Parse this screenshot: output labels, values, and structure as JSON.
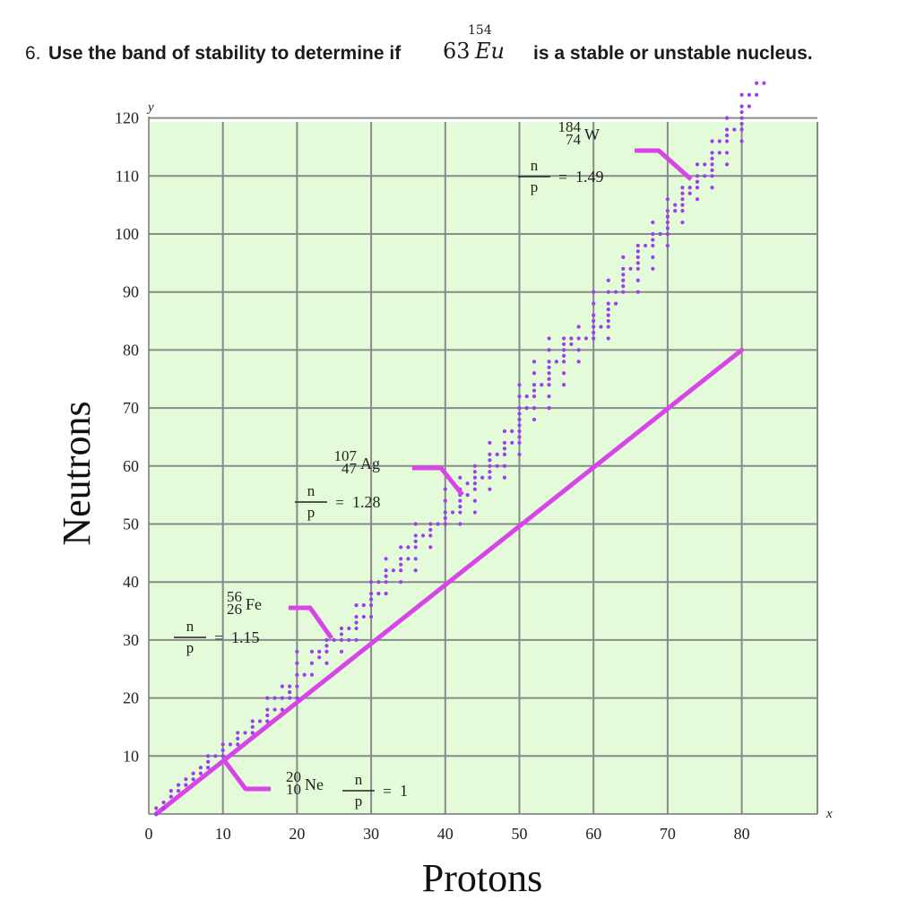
{
  "question": {
    "prefix": "6.",
    "text_a": "Use the band of stability to determine if",
    "text_b": "is a stable or unstable nucleus.",
    "nucleus": {
      "mass": "154",
      "z": "63",
      "symbol": "Eu"
    }
  },
  "chart_data": {
    "type": "scatter",
    "title": "",
    "xlabel": "Protons",
    "ylabel": "Neutrons",
    "x_axis_letter": "x",
    "y_axis_letter": "y",
    "xlim": [
      0,
      90
    ],
    "ylim": [
      0,
      120
    ],
    "xticks": [
      0,
      10,
      20,
      30,
      40,
      50,
      60,
      70,
      80
    ],
    "yticks": [
      10,
      20,
      30,
      40,
      50,
      60,
      70,
      80,
      90,
      100,
      110,
      120
    ],
    "grid": true,
    "background_color": "#e3fbd9",
    "grid_color": "#8a8a8a",
    "point_color": "#9b3df0",
    "line_color": "#d944e8",
    "reference_line": {
      "label": "n/p = 1",
      "from": [
        1,
        0
      ],
      "to": [
        80,
        80
      ]
    },
    "band_of_stability": [
      [
        1,
        0
      ],
      [
        1,
        1
      ],
      [
        2,
        1
      ],
      [
        2,
        2
      ],
      [
        3,
        3
      ],
      [
        3,
        4
      ],
      [
        4,
        4
      ],
      [
        4,
        5
      ],
      [
        5,
        5
      ],
      [
        5,
        6
      ],
      [
        6,
        6
      ],
      [
        6,
        7
      ],
      [
        7,
        7
      ],
      [
        7,
        8
      ],
      [
        8,
        8
      ],
      [
        8,
        9
      ],
      [
        8,
        10
      ],
      [
        9,
        10
      ],
      [
        10,
        10
      ],
      [
        10,
        11
      ],
      [
        10,
        12
      ],
      [
        11,
        12
      ],
      [
        12,
        12
      ],
      [
        12,
        13
      ],
      [
        12,
        14
      ],
      [
        13,
        14
      ],
      [
        14,
        14
      ],
      [
        14,
        15
      ],
      [
        14,
        16
      ],
      [
        15,
        16
      ],
      [
        16,
        16
      ],
      [
        16,
        17
      ],
      [
        16,
        18
      ],
      [
        16,
        20
      ],
      [
        17,
        18
      ],
      [
        17,
        20
      ],
      [
        18,
        18
      ],
      [
        18,
        20
      ],
      [
        18,
        22
      ],
      [
        19,
        20
      ],
      [
        19,
        21
      ],
      [
        19,
        22
      ],
      [
        20,
        20
      ],
      [
        20,
        22
      ],
      [
        20,
        24
      ],
      [
        20,
        26
      ],
      [
        20,
        28
      ],
      [
        21,
        24
      ],
      [
        22,
        24
      ],
      [
        22,
        26
      ],
      [
        22,
        28
      ],
      [
        23,
        27
      ],
      [
        23,
        28
      ],
      [
        24,
        26
      ],
      [
        24,
        28
      ],
      [
        24,
        29
      ],
      [
        24,
        30
      ],
      [
        25,
        30
      ],
      [
        26,
        28
      ],
      [
        26,
        30
      ],
      [
        26,
        31
      ],
      [
        26,
        32
      ],
      [
        27,
        30
      ],
      [
        27,
        32
      ],
      [
        28,
        30
      ],
      [
        28,
        32
      ],
      [
        28,
        33
      ],
      [
        28,
        34
      ],
      [
        28,
        36
      ],
      [
        29,
        34
      ],
      [
        29,
        36
      ],
      [
        30,
        34
      ],
      [
        30,
        36
      ],
      [
        30,
        37
      ],
      [
        30,
        38
      ],
      [
        30,
        40
      ],
      [
        31,
        38
      ],
      [
        31,
        40
      ],
      [
        32,
        38
      ],
      [
        32,
        40
      ],
      [
        32,
        41
      ],
      [
        32,
        42
      ],
      [
        32,
        44
      ],
      [
        33,
        42
      ],
      [
        34,
        40
      ],
      [
        34,
        42
      ],
      [
        34,
        43
      ],
      [
        34,
        44
      ],
      [
        34,
        46
      ],
      [
        35,
        44
      ],
      [
        35,
        46
      ],
      [
        36,
        42
      ],
      [
        36,
        44
      ],
      [
        36,
        46
      ],
      [
        36,
        47
      ],
      [
        36,
        48
      ],
      [
        36,
        50
      ],
      [
        37,
        48
      ],
      [
        38,
        46
      ],
      [
        38,
        48
      ],
      [
        38,
        49
      ],
      [
        38,
        50
      ],
      [
        39,
        50
      ],
      [
        40,
        50
      ],
      [
        40,
        51
      ],
      [
        40,
        52
      ],
      [
        40,
        54
      ],
      [
        40,
        56
      ],
      [
        41,
        52
      ],
      [
        42,
        50
      ],
      [
        42,
        52
      ],
      [
        42,
        53
      ],
      [
        42,
        54
      ],
      [
        42,
        55
      ],
      [
        42,
        56
      ],
      [
        42,
        58
      ],
      [
        43,
        55
      ],
      [
        43,
        57
      ],
      [
        44,
        52
      ],
      [
        44,
        54
      ],
      [
        44,
        56
      ],
      [
        44,
        57
      ],
      [
        44,
        58
      ],
      [
        44,
        59
      ],
      [
        44,
        60
      ],
      [
        45,
        58
      ],
      [
        46,
        56
      ],
      [
        46,
        58
      ],
      [
        46,
        59
      ],
      [
        46,
        60
      ],
      [
        46,
        61
      ],
      [
        46,
        62
      ],
      [
        46,
        64
      ],
      [
        47,
        60
      ],
      [
        47,
        62
      ],
      [
        48,
        58
      ],
      [
        48,
        60
      ],
      [
        48,
        62
      ],
      [
        48,
        63
      ],
      [
        48,
        64
      ],
      [
        48,
        66
      ],
      [
        49,
        64
      ],
      [
        49,
        66
      ],
      [
        50,
        62
      ],
      [
        50,
        64
      ],
      [
        50,
        65
      ],
      [
        50,
        66
      ],
      [
        50,
        67
      ],
      [
        50,
        68
      ],
      [
        50,
        69
      ],
      [
        50,
        70
      ],
      [
        50,
        72
      ],
      [
        50,
        74
      ],
      [
        51,
        70
      ],
      [
        51,
        72
      ],
      [
        52,
        68
      ],
      [
        52,
        70
      ],
      [
        52,
        72
      ],
      [
        52,
        73
      ],
      [
        52,
        74
      ],
      [
        52,
        76
      ],
      [
        52,
        78
      ],
      [
        53,
        74
      ],
      [
        54,
        70
      ],
      [
        54,
        72
      ],
      [
        54,
        74
      ],
      [
        54,
        75
      ],
      [
        54,
        76
      ],
      [
        54,
        77
      ],
      [
        54,
        78
      ],
      [
        54,
        80
      ],
      [
        54,
        82
      ],
      [
        55,
        78
      ],
      [
        56,
        74
      ],
      [
        56,
        76
      ],
      [
        56,
        78
      ],
      [
        56,
        79
      ],
      [
        56,
        80
      ],
      [
        56,
        81
      ],
      [
        56,
        82
      ],
      [
        57,
        81
      ],
      [
        57,
        82
      ],
      [
        58,
        78
      ],
      [
        58,
        80
      ],
      [
        58,
        82
      ],
      [
        58,
        84
      ],
      [
        59,
        82
      ],
      [
        60,
        82
      ],
      [
        60,
        83
      ],
      [
        60,
        84
      ],
      [
        60,
        85
      ],
      [
        60,
        86
      ],
      [
        60,
        88
      ],
      [
        60,
        90
      ],
      [
        61,
        84
      ],
      [
        62,
        82
      ],
      [
        62,
        84
      ],
      [
        62,
        85
      ],
      [
        62,
        86
      ],
      [
        62,
        87
      ],
      [
        62,
        88
      ],
      [
        62,
        90
      ],
      [
        62,
        92
      ],
      [
        63,
        88
      ],
      [
        63,
        90
      ],
      [
        64,
        90
      ],
      [
        64,
        91
      ],
      [
        64,
        92
      ],
      [
        64,
        93
      ],
      [
        64,
        94
      ],
      [
        64,
        96
      ],
      [
        65,
        94
      ],
      [
        66,
        90
      ],
      [
        66,
        92
      ],
      [
        66,
        94
      ],
      [
        66,
        95
      ],
      [
        66,
        96
      ],
      [
        66,
        97
      ],
      [
        66,
        98
      ],
      [
        67,
        98
      ],
      [
        68,
        94
      ],
      [
        68,
        96
      ],
      [
        68,
        98
      ],
      [
        68,
        99
      ],
      [
        68,
        100
      ],
      [
        68,
        102
      ],
      [
        69,
        100
      ],
      [
        70,
        98
      ],
      [
        70,
        100
      ],
      [
        70,
        101
      ],
      [
        70,
        102
      ],
      [
        70,
        103
      ],
      [
        70,
        104
      ],
      [
        70,
        106
      ],
      [
        71,
        104
      ],
      [
        71,
        105
      ],
      [
        72,
        102
      ],
      [
        72,
        104
      ],
      [
        72,
        105
      ],
      [
        72,
        106
      ],
      [
        72,
        107
      ],
      [
        72,
        108
      ],
      [
        73,
        107
      ],
      [
        73,
        108
      ],
      [
        74,
        106
      ],
      [
        74,
        108
      ],
      [
        74,
        109
      ],
      [
        74,
        110
      ],
      [
        74,
        112
      ],
      [
        75,
        110
      ],
      [
        75,
        112
      ],
      [
        76,
        108
      ],
      [
        76,
        110
      ],
      [
        76,
        111
      ],
      [
        76,
        112
      ],
      [
        76,
        113
      ],
      [
        76,
        114
      ],
      [
        76,
        116
      ],
      [
        77,
        114
      ],
      [
        77,
        116
      ],
      [
        78,
        112
      ],
      [
        78,
        114
      ],
      [
        78,
        116
      ],
      [
        78,
        117
      ],
      [
        78,
        118
      ],
      [
        78,
        120
      ],
      [
        79,
        118
      ],
      [
        80,
        116
      ],
      [
        80,
        118
      ],
      [
        80,
        119
      ],
      [
        80,
        120
      ],
      [
        80,
        121
      ],
      [
        80,
        122
      ],
      [
        80,
        124
      ],
      [
        81,
        122
      ],
      [
        81,
        124
      ],
      [
        82,
        124
      ],
      [
        82,
        126
      ],
      [
        83,
        126
      ]
    ],
    "annotations": [
      {
        "id": "ne",
        "mass": "20",
        "z": "10",
        "symbol": "Ne",
        "ratio": "1",
        "numerator": "n",
        "denominator": "p"
      },
      {
        "id": "fe",
        "mass": "56",
        "z": "26",
        "symbol": "Fe",
        "ratio": "1.15",
        "numerator": "n",
        "denominator": "p"
      },
      {
        "id": "ag",
        "mass": "107",
        "z": "47",
        "symbol": "Ag",
        "ratio": "1.28",
        "numerator": "n",
        "denominator": "p"
      },
      {
        "id": "w",
        "mass": "184",
        "z": "74",
        "symbol": "W",
        "ratio": "1.49",
        "numerator": "n",
        "denominator": "p"
      }
    ]
  }
}
